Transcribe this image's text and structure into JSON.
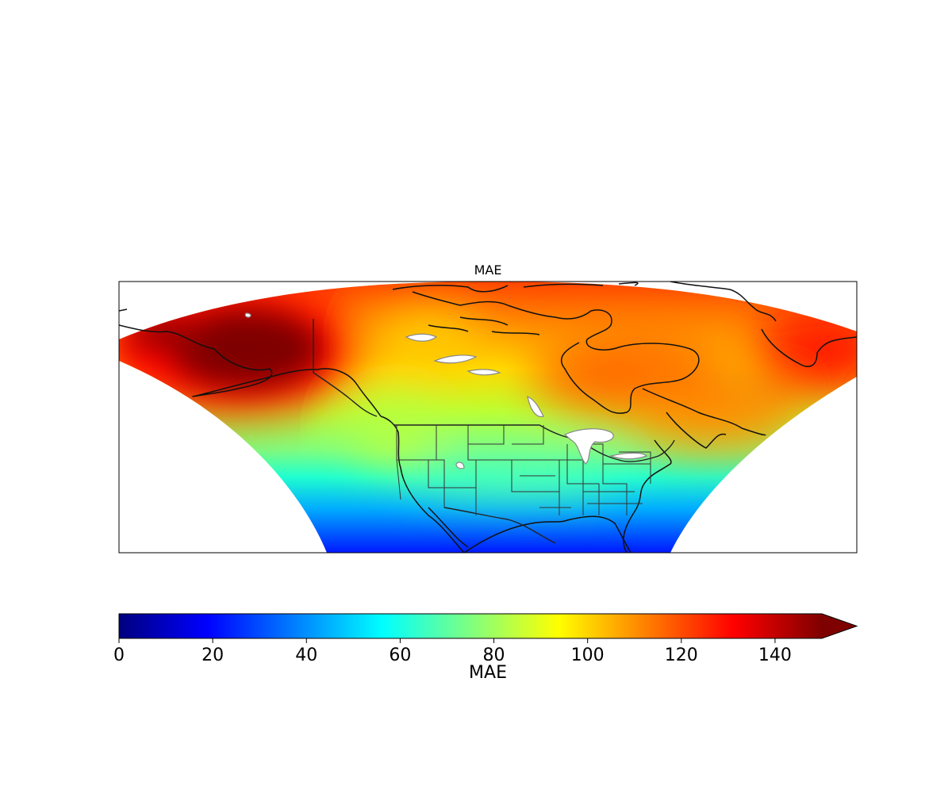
{
  "map": {
    "title": "MAE",
    "projection": "lambert-conformal-conic",
    "region": "North America",
    "features": [
      "coastlines",
      "country-borders",
      "us-state-borders",
      "lakes"
    ],
    "colormap": "jet",
    "field_summary": [
      {
        "region": "Alaska",
        "value": 150
      },
      {
        "region": "Western Canada",
        "value": 115
      },
      {
        "region": "Canadian Prairies",
        "value": 88
      },
      {
        "region": "Hudson Bay",
        "value": 125
      },
      {
        "region": "Labrador / Quebec",
        "value": 130
      },
      {
        "region": "Greenland",
        "value": 135
      },
      {
        "region": "US Northern Plains",
        "value": 85
      },
      {
        "region": "US Southern Plains",
        "value": 65
      },
      {
        "region": "US Southeast",
        "value": 60
      },
      {
        "region": "Mexico",
        "value": 45
      },
      {
        "region": "Gulf of Mexico",
        "value": 30
      },
      {
        "region": "Southern domain edge",
        "value": 15
      }
    ]
  },
  "colorbar": {
    "label": "MAE",
    "min": 0,
    "max": 150,
    "extend": "max",
    "ticks": [
      "0",
      "20",
      "40",
      "60",
      "80",
      "100",
      "120",
      "140"
    ],
    "tick_values": [
      0,
      20,
      40,
      60,
      80,
      100,
      120,
      140
    ],
    "colors": [
      "#00007f",
      "#0000ff",
      "#007fff",
      "#00ffff",
      "#7fff7f",
      "#ffff00",
      "#ff7f00",
      "#ff0000",
      "#7f0000"
    ]
  }
}
